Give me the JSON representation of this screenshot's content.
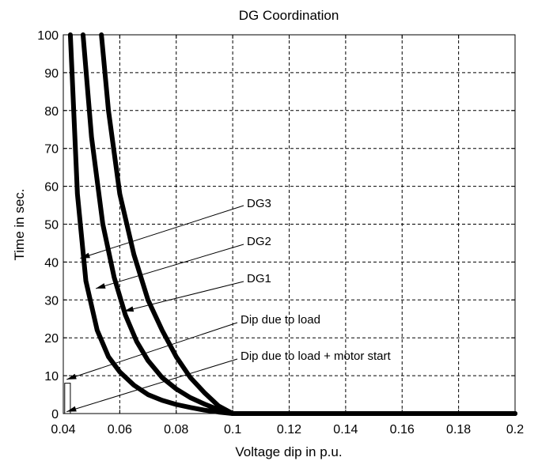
{
  "chart_data": {
    "type": "line",
    "title": "DG Coordination",
    "xlabel": "Voltage dip in p.u.",
    "ylabel": "Time in sec.",
    "xlim": [
      0.04,
      0.2
    ],
    "ylim": [
      0,
      100
    ],
    "xticks": [
      0.04,
      0.06,
      0.08,
      0.1,
      0.12,
      0.14,
      0.16,
      0.18,
      0.2
    ],
    "xtick_labels": [
      "0.04",
      "0.06",
      "0.08",
      "0.1",
      "0.12",
      "0.14",
      "0.16",
      "0.18",
      "0.2"
    ],
    "yticks": [
      0,
      10,
      20,
      30,
      40,
      50,
      60,
      70,
      80,
      90,
      100
    ],
    "ytick_labels": [
      "0",
      "10",
      "20",
      "30",
      "40",
      "50",
      "60",
      "70",
      "80",
      "90",
      "100"
    ],
    "grid": true,
    "series": [
      {
        "name": "DG3",
        "x": [
          0.0425,
          0.045,
          0.048,
          0.052,
          0.056,
          0.06,
          0.065,
          0.07,
          0.075,
          0.08,
          0.085,
          0.09,
          0.095,
          0.1,
          0.12,
          0.14,
          0.16,
          0.18,
          0.2
        ],
        "y": [
          100,
          58,
          35,
          22,
          15,
          11,
          7.5,
          5,
          3.5,
          2.4,
          1.6,
          0.9,
          0.4,
          0,
          0,
          0,
          0,
          0,
          0
        ]
      },
      {
        "name": "DG2",
        "x": [
          0.047,
          0.05,
          0.054,
          0.058,
          0.062,
          0.066,
          0.07,
          0.075,
          0.08,
          0.085,
          0.09,
          0.095,
          0.1,
          0.12,
          0.14,
          0.16,
          0.18,
          0.2
        ],
        "y": [
          100,
          73,
          50,
          36,
          26,
          19,
          14,
          9.5,
          6.5,
          4.2,
          2.5,
          1,
          0,
          0,
          0,
          0,
          0,
          0
        ]
      },
      {
        "name": "DG1",
        "x": [
          0.0535,
          0.056,
          0.06,
          0.065,
          0.07,
          0.075,
          0.08,
          0.085,
          0.09,
          0.095,
          0.1,
          0.12,
          0.14,
          0.16,
          0.18,
          0.2
        ],
        "y": [
          100,
          80,
          58,
          42,
          30,
          22,
          15,
          9.5,
          5.5,
          2,
          0,
          0,
          0,
          0,
          0,
          0
        ]
      }
    ],
    "annotations": [
      {
        "text": "DG3",
        "x": 0.046,
        "y": 41
      },
      {
        "text": "DG2",
        "x": 0.0515,
        "y": 33
      },
      {
        "text": "DG1",
        "x": 0.0615,
        "y": 27
      },
      {
        "text": "Dip due to load",
        "x": 0.0412,
        "y": 9
      },
      {
        "text": "Dip due to load + motor start",
        "x": 0.0412,
        "y": 0.5
      }
    ],
    "bracket": {
      "x": [
        0.0405,
        0.0425
      ],
      "y": [
        0,
        8
      ]
    }
  }
}
